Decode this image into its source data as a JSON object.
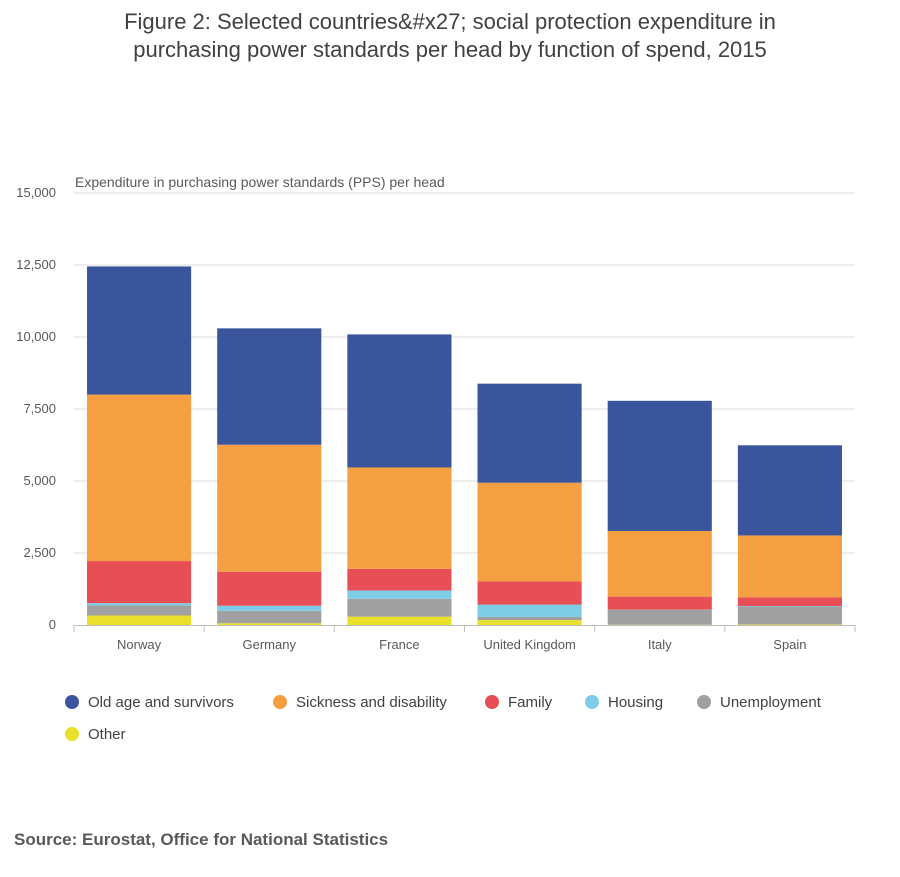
{
  "title_line1": "Figure 2: Selected countries&#x27; social protection expenditure in",
  "title_line2": "purchasing power standards per head by function of spend, 2015",
  "source": "Source: Eurostat, Office for National Statistics",
  "chart_data": {
    "type": "bar",
    "stacked": true,
    "ylabel": "Expenditure in purchasing power standards (PPS) per head",
    "ylim": [
      0,
      15000
    ],
    "yticks": [
      0,
      2500,
      5000,
      7500,
      10000,
      12500,
      15000
    ],
    "ytick_labels": [
      "0",
      "2,500",
      "5,000",
      "7,500",
      "10,000",
      "12,500",
      "15,000"
    ],
    "categories": [
      "Norway",
      "Germany",
      "France",
      "United Kingdom",
      "Italy",
      "Spain"
    ],
    "series": [
      {
        "name": "Other",
        "color": "#e8e02a",
        "values": [
          330,
          60,
          290,
          170,
          10,
          20
        ]
      },
      {
        "name": "Unemployment",
        "color": "#a0a0a0",
        "values": [
          350,
          430,
          620,
          110,
          520,
          620
        ]
      },
      {
        "name": "Housing",
        "color": "#7ecce6",
        "values": [
          80,
          180,
          290,
          430,
          5,
          20
        ]
      },
      {
        "name": "Family",
        "color": "#e84e55",
        "values": [
          1460,
          1180,
          750,
          800,
          450,
          300
        ]
      },
      {
        "name": "Sickness and disability",
        "color": "#f49f42",
        "values": [
          5780,
          4410,
          3520,
          3430,
          2280,
          2150
        ]
      },
      {
        "name": "Old age and survivors",
        "color": "#3a559c",
        "values": [
          4450,
          4040,
          4620,
          3440,
          4520,
          3130
        ]
      }
    ],
    "legend_order": [
      "Old age and survivors",
      "Sickness and disability",
      "Family",
      "Housing",
      "Unemployment",
      "Other"
    ],
    "legend_position": "bottom",
    "grid": true
  }
}
